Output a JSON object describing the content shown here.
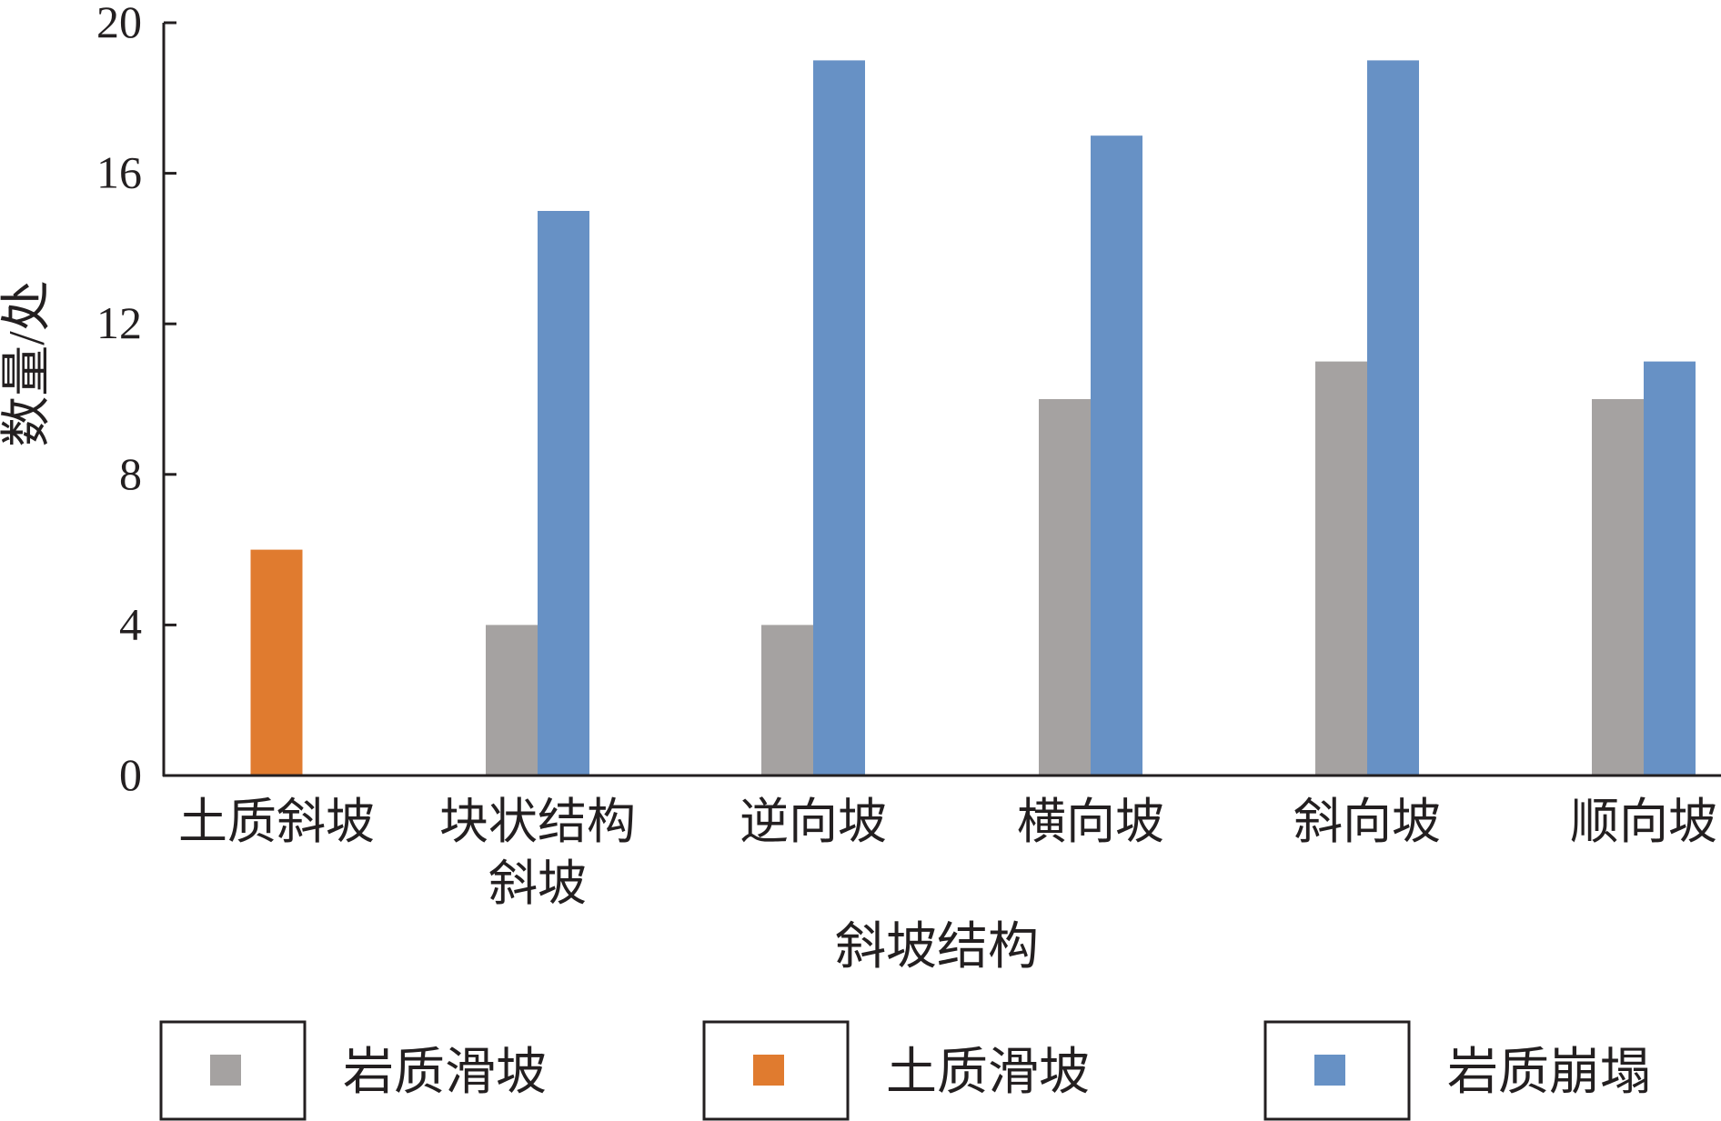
{
  "chart_data": {
    "type": "bar",
    "title": "",
    "xlabel": "斜坡结构",
    "ylabel": "数量/处",
    "ylim": [
      0,
      20
    ],
    "yticks": [
      0,
      4,
      8,
      12,
      16,
      20
    ],
    "categories": [
      [
        "土质斜坡"
      ],
      [
        "块状结构",
        "斜坡"
      ],
      [
        "逆向坡"
      ],
      [
        "横向坡"
      ],
      [
        "斜向坡"
      ],
      [
        "顺向坡"
      ]
    ],
    "series": [
      {
        "name": "岩质滑坡",
        "color": "#a5a2a1",
        "values": [
          0,
          4,
          4,
          10,
          11,
          10
        ]
      },
      {
        "name": "土质滑坡",
        "color": "#e07b2f",
        "values": [
          6,
          0,
          0,
          0,
          0,
          0
        ]
      },
      {
        "name": "岩质崩塌",
        "color": "#6791c5",
        "values": [
          0,
          15,
          19,
          17,
          19,
          11
        ]
      }
    ],
    "grid": false,
    "legend_position": "bottom"
  }
}
